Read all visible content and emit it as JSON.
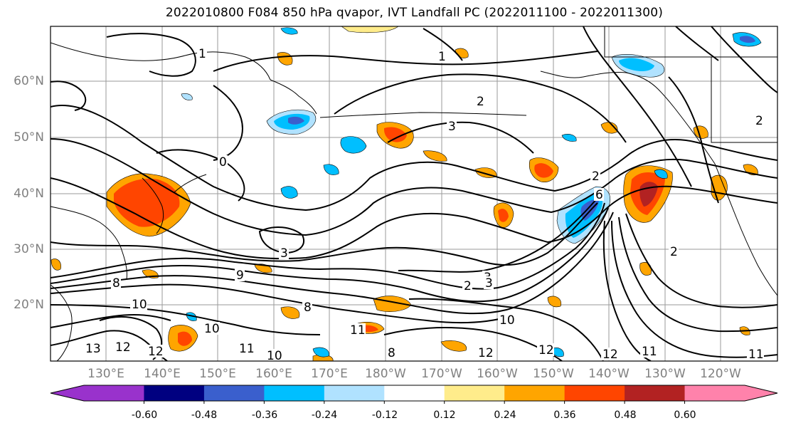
{
  "title": "2022010800 F084 850 hPa qvapor, IVT Landfall PC (2022011100 - 2022011300)",
  "lat_labels": [
    "60°N",
    "50°N",
    "40°N",
    "30°N",
    "20°N"
  ],
  "lon_labels": [
    "130°E",
    "140°E",
    "150°E",
    "160°E",
    "170°E",
    "180°W",
    "170°W",
    "160°W",
    "150°W",
    "140°W",
    "130°W",
    "120°W"
  ],
  "colorbar": {
    "colors": [
      "#9932cc",
      "#000080",
      "#3a5fcd",
      "#00bfff",
      "#b0e2ff",
      "#ffffff",
      "#ffec8b",
      "#ffa500",
      "#ff4500",
      "#b22222",
      "#ff82ab"
    ],
    "tick_labels": [
      "-0.60",
      "-0.48",
      "-0.36",
      "-0.24",
      "-0.12",
      "0.12",
      "0.24",
      "0.36",
      "0.48",
      "0.60"
    ]
  },
  "contour_labels": [
    "1",
    "1",
    "2",
    "2",
    "3",
    "3",
    "3",
    "0",
    "2",
    "6",
    "9",
    "8",
    "10",
    "8",
    "10",
    "12",
    "12",
    "13",
    "11",
    "10",
    "11",
    "12",
    "12",
    "11",
    "2",
    "3",
    "2",
    "11",
    "8",
    "12",
    "10"
  ]
}
